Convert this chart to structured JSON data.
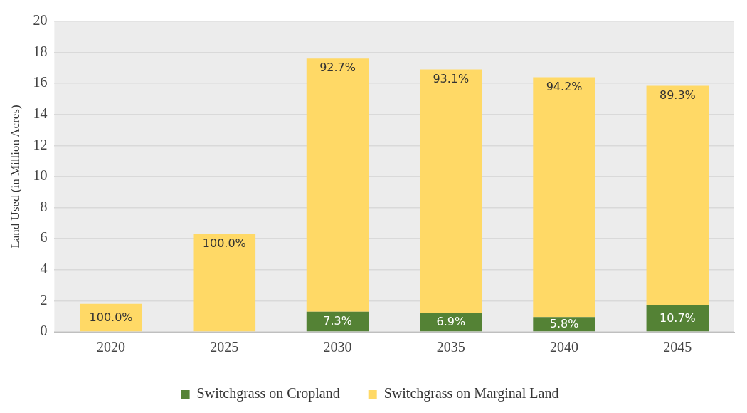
{
  "chart_data": {
    "type": "bar",
    "ylabel": "Land Used (in Million Acres)",
    "categories": [
      "2020",
      "2025",
      "2030",
      "2035",
      "2040",
      "2045"
    ],
    "stacked": true,
    "ylim": [
      0,
      20
    ],
    "yticks": [
      0,
      2,
      4,
      6,
      8,
      10,
      12,
      14,
      16,
      18,
      20
    ],
    "grid": "y",
    "legend": "bottom",
    "series": [
      {
        "name": "Switchgrass on Cropland",
        "color": "#548235",
        "values": [
          0,
          0,
          1.3,
          1.2,
          0.95,
          1.7
        ]
      },
      {
        "name": "Switchgrass on Marginal Land",
        "color": "#ffd966",
        "values": [
          1.8,
          6.3,
          16.3,
          15.7,
          15.45,
          14.15
        ]
      }
    ],
    "annotations": [
      {
        "text": "7.3%",
        "x": "2030",
        "y": 1.3
      },
      {
        "text": "6.9%",
        "x": "2035",
        "y": 1.2
      },
      {
        "text": "5.8%",
        "x": "2040",
        "y": 0.95
      },
      {
        "text": "10.7%",
        "x": "2045",
        "y": 1.7
      },
      {
        "text": "100.0%",
        "x": "2020",
        "y": 1.8
      },
      {
        "text": "100.0%",
        "x": "2025",
        "y": 6.3
      },
      {
        "text": "92.7%",
        "x": "2030",
        "y": 17.6
      },
      {
        "text": "93.1%",
        "x": "2035",
        "y": 16.9
      },
      {
        "text": "94.2%",
        "x": "2040",
        "y": 16.4
      },
      {
        "text": "89.3%",
        "x": "2045",
        "y": 15.85
      }
    ]
  }
}
